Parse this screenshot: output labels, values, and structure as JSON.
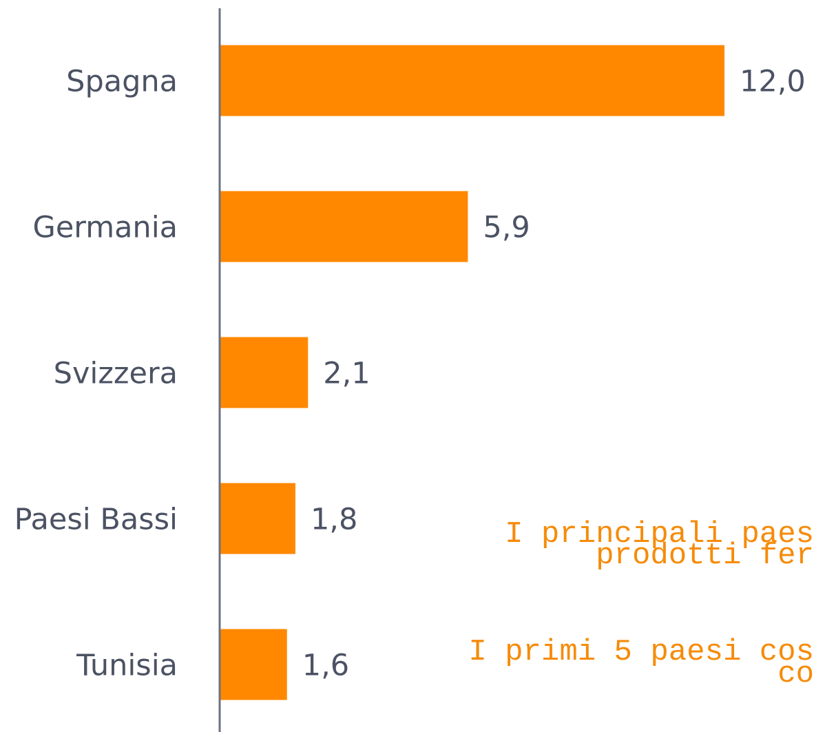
{
  "chart_data": {
    "type": "bar",
    "orientation": "horizontal",
    "categories": [
      "Spagna",
      "Germania",
      "Svizzera",
      "Paesi Bassi",
      "Tunisia"
    ],
    "values": [
      12.0,
      5.9,
      2.1,
      1.8,
      1.6
    ],
    "value_labels": [
      "12,0",
      "5,9",
      "2,1",
      "1,8",
      "1,6"
    ],
    "color": "#ff8800",
    "annotations": [
      "I principali paes",
      "prodotti fer",
      "I primi 5 paesi cos",
      "co"
    ]
  }
}
